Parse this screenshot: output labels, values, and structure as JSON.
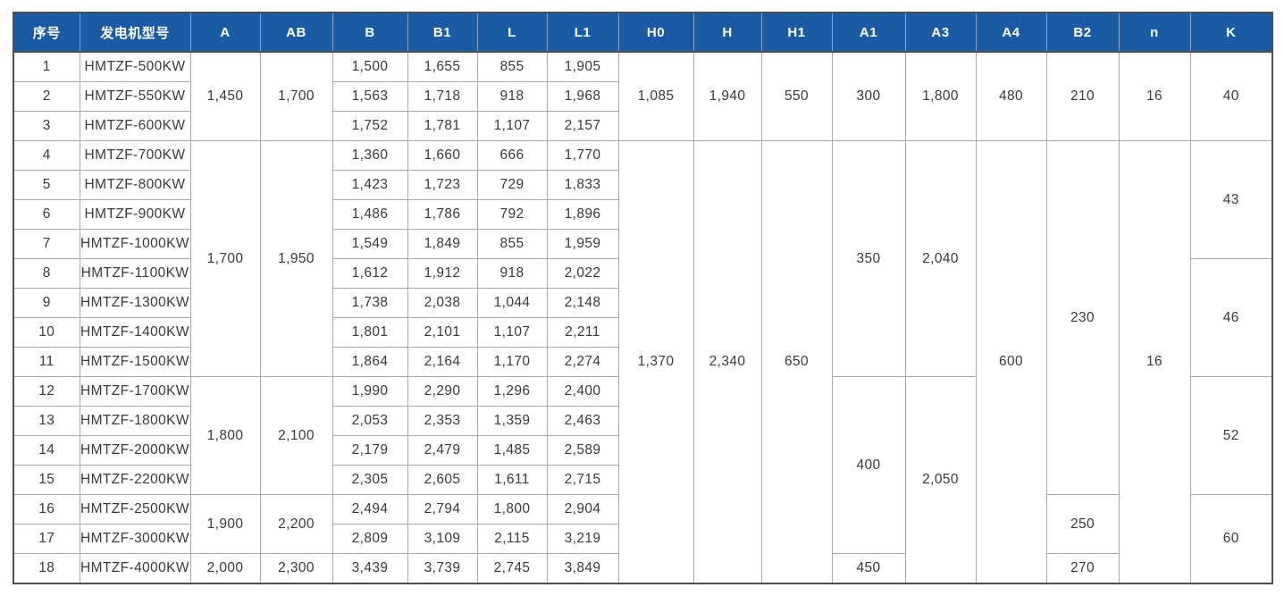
{
  "colors": {
    "header_bg": "#1b5aa5",
    "header_text": "#ffffff",
    "grid_line": "#a8a8a8",
    "frame": "#4f4f4f",
    "cell_text": "#3a3a3a"
  },
  "table": {
    "col_keys": [
      "index",
      "model",
      "A",
      "AB",
      "B",
      "B1",
      "L",
      "L1",
      "H0",
      "H",
      "H1",
      "A1",
      "A3",
      "A4",
      "B2",
      "n",
      "K"
    ],
    "headers": [
      "序号",
      "发电机型号",
      "A",
      "AB",
      "B",
      "B1",
      "L",
      "L1",
      "H0",
      "H",
      "H1",
      "A1",
      "A3",
      "A4",
      "B2",
      "n",
      "K"
    ],
    "rows": [
      {
        "cells": [
          {
            "t": "1",
            "rs": 1
          },
          {
            "t": "HMTZF-500KW",
            "rs": 1
          },
          {
            "t": "1,450",
            "rs": 3
          },
          {
            "t": "1,700",
            "rs": 3
          },
          {
            "t": "1,500",
            "rs": 1
          },
          {
            "t": "1,655",
            "rs": 1
          },
          {
            "t": "855",
            "rs": 1
          },
          {
            "t": "1,905",
            "rs": 1
          },
          {
            "t": "1,085",
            "rs": 3
          },
          {
            "t": "1,940",
            "rs": 3
          },
          {
            "t": "550",
            "rs": 3
          },
          {
            "t": "300",
            "rs": 3
          },
          {
            "t": "1,800",
            "rs": 3
          },
          {
            "t": "480",
            "rs": 3
          },
          {
            "t": "210",
            "rs": 3
          },
          {
            "t": "16",
            "rs": 3
          },
          {
            "t": "40",
            "rs": 3
          }
        ]
      },
      {
        "cells": [
          {
            "t": "2",
            "rs": 1
          },
          {
            "t": "HMTZF-550KW",
            "rs": 1
          },
          {
            "t": "1,563",
            "rs": 1
          },
          {
            "t": "1,718",
            "rs": 1
          },
          {
            "t": "918",
            "rs": 1
          },
          {
            "t": "1,968",
            "rs": 1
          }
        ]
      },
      {
        "cells": [
          {
            "t": "3",
            "rs": 1
          },
          {
            "t": "HMTZF-600KW",
            "rs": 1
          },
          {
            "t": "1,752",
            "rs": 1
          },
          {
            "t": "1,781",
            "rs": 1
          },
          {
            "t": "1,107",
            "rs": 1
          },
          {
            "t": "2,157",
            "rs": 1
          }
        ]
      },
      {
        "cells": [
          {
            "t": "4",
            "rs": 1
          },
          {
            "t": "HMTZF-700KW",
            "rs": 1
          },
          {
            "t": "1,700",
            "rs": 8
          },
          {
            "t": "1,950",
            "rs": 8
          },
          {
            "t": "1,360",
            "rs": 1
          },
          {
            "t": "1,660",
            "rs": 1
          },
          {
            "t": "666",
            "rs": 1
          },
          {
            "t": "1,770",
            "rs": 1
          },
          {
            "t": "1,370",
            "rs": 15
          },
          {
            "t": "2,340",
            "rs": 15
          },
          {
            "t": "650",
            "rs": 15
          },
          {
            "t": "350",
            "rs": 8
          },
          {
            "t": "2,040",
            "rs": 8
          },
          {
            "t": "600",
            "rs": 15
          },
          {
            "t": "230",
            "rs": 12
          },
          {
            "t": "16",
            "rs": 15
          },
          {
            "t": "43",
            "rs": 4
          }
        ]
      },
      {
        "cells": [
          {
            "t": "5",
            "rs": 1
          },
          {
            "t": "HMTZF-800KW",
            "rs": 1
          },
          {
            "t": "1,423",
            "rs": 1
          },
          {
            "t": "1,723",
            "rs": 1
          },
          {
            "t": "729",
            "rs": 1
          },
          {
            "t": "1,833",
            "rs": 1
          }
        ]
      },
      {
        "cells": [
          {
            "t": "6",
            "rs": 1
          },
          {
            "t": "HMTZF-900KW",
            "rs": 1
          },
          {
            "t": "1,486",
            "rs": 1
          },
          {
            "t": "1,786",
            "rs": 1
          },
          {
            "t": "792",
            "rs": 1
          },
          {
            "t": "1,896",
            "rs": 1
          }
        ]
      },
      {
        "cells": [
          {
            "t": "7",
            "rs": 1
          },
          {
            "t": "HMTZF-1000KW",
            "rs": 1
          },
          {
            "t": "1,549",
            "rs": 1
          },
          {
            "t": "1,849",
            "rs": 1
          },
          {
            "t": "855",
            "rs": 1
          },
          {
            "t": "1,959",
            "rs": 1
          }
        ]
      },
      {
        "cells": [
          {
            "t": "8",
            "rs": 1
          },
          {
            "t": "HMTZF-1100KW",
            "rs": 1
          },
          {
            "t": "1,612",
            "rs": 1
          },
          {
            "t": "1,912",
            "rs": 1
          },
          {
            "t": "918",
            "rs": 1
          },
          {
            "t": "2,022",
            "rs": 1
          },
          {
            "t": "46",
            "rs": 4
          }
        ]
      },
      {
        "cells": [
          {
            "t": "9",
            "rs": 1
          },
          {
            "t": "HMTZF-1300KW",
            "rs": 1
          },
          {
            "t": "1,738",
            "rs": 1
          },
          {
            "t": "2,038",
            "rs": 1
          },
          {
            "t": "1,044",
            "rs": 1
          },
          {
            "t": "2,148",
            "rs": 1
          }
        ]
      },
      {
        "cells": [
          {
            "t": "10",
            "rs": 1
          },
          {
            "t": "HMTZF-1400KW",
            "rs": 1
          },
          {
            "t": "1,801",
            "rs": 1
          },
          {
            "t": "2,101",
            "rs": 1
          },
          {
            "t": "1,107",
            "rs": 1
          },
          {
            "t": "2,211",
            "rs": 1
          }
        ]
      },
      {
        "cells": [
          {
            "t": "11",
            "rs": 1
          },
          {
            "t": "HMTZF-1500KW",
            "rs": 1
          },
          {
            "t": "1,864",
            "rs": 1
          },
          {
            "t": "2,164",
            "rs": 1
          },
          {
            "t": "1,170",
            "rs": 1
          },
          {
            "t": "2,274",
            "rs": 1
          }
        ]
      },
      {
        "cells": [
          {
            "t": "12",
            "rs": 1
          },
          {
            "t": "HMTZF-1700KW",
            "rs": 1
          },
          {
            "t": "1,800",
            "rs": 4
          },
          {
            "t": "2,100",
            "rs": 4
          },
          {
            "t": "1,990",
            "rs": 1
          },
          {
            "t": "2,290",
            "rs": 1
          },
          {
            "t": "1,296",
            "rs": 1
          },
          {
            "t": "2,400",
            "rs": 1
          },
          {
            "t": "400",
            "rs": 6
          },
          {
            "t": "2,050",
            "rs": 7
          },
          {
            "t": "52",
            "rs": 4
          }
        ]
      },
      {
        "cells": [
          {
            "t": "13",
            "rs": 1
          },
          {
            "t": "HMTZF-1800KW",
            "rs": 1
          },
          {
            "t": "2,053",
            "rs": 1
          },
          {
            "t": "2,353",
            "rs": 1
          },
          {
            "t": "1,359",
            "rs": 1
          },
          {
            "t": "2,463",
            "rs": 1
          }
        ]
      },
      {
        "cells": [
          {
            "t": "14",
            "rs": 1
          },
          {
            "t": "HMTZF-2000KW",
            "rs": 1
          },
          {
            "t": "2,179",
            "rs": 1
          },
          {
            "t": "2,479",
            "rs": 1
          },
          {
            "t": "1,485",
            "rs": 1
          },
          {
            "t": "2,589",
            "rs": 1
          }
        ]
      },
      {
        "cells": [
          {
            "t": "15",
            "rs": 1
          },
          {
            "t": "HMTZF-2200KW",
            "rs": 1
          },
          {
            "t": "2,305",
            "rs": 1
          },
          {
            "t": "2,605",
            "rs": 1
          },
          {
            "t": "1,611",
            "rs": 1
          },
          {
            "t": "2,715",
            "rs": 1
          }
        ]
      },
      {
        "cells": [
          {
            "t": "16",
            "rs": 1
          },
          {
            "t": "HMTZF-2500KW",
            "rs": 1
          },
          {
            "t": "1,900",
            "rs": 2
          },
          {
            "t": "2,200",
            "rs": 2
          },
          {
            "t": "2,494",
            "rs": 1
          },
          {
            "t": "2,794",
            "rs": 1
          },
          {
            "t": "1,800",
            "rs": 1
          },
          {
            "t": "2,904",
            "rs": 1
          },
          {
            "t": "250",
            "rs": 2
          },
          {
            "t": "60",
            "rs": 3
          }
        ]
      },
      {
        "cells": [
          {
            "t": "17",
            "rs": 1
          },
          {
            "t": "HMTZF-3000KW",
            "rs": 1
          },
          {
            "t": "2,809",
            "rs": 1
          },
          {
            "t": "3,109",
            "rs": 1
          },
          {
            "t": "2,115",
            "rs": 1
          },
          {
            "t": "3,219",
            "rs": 1
          }
        ]
      },
      {
        "cells": [
          {
            "t": "18",
            "rs": 1
          },
          {
            "t": "HMTZF-4000KW",
            "rs": 1
          },
          {
            "t": "2,000",
            "rs": 1
          },
          {
            "t": "2,300",
            "rs": 1
          },
          {
            "t": "3,439",
            "rs": 1
          },
          {
            "t": "3,739",
            "rs": 1
          },
          {
            "t": "2,745",
            "rs": 1
          },
          {
            "t": "3,849",
            "rs": 1
          },
          {
            "t": "450",
            "rs": 1
          },
          {
            "t": "270",
            "rs": 1
          }
        ]
      }
    ]
  }
}
